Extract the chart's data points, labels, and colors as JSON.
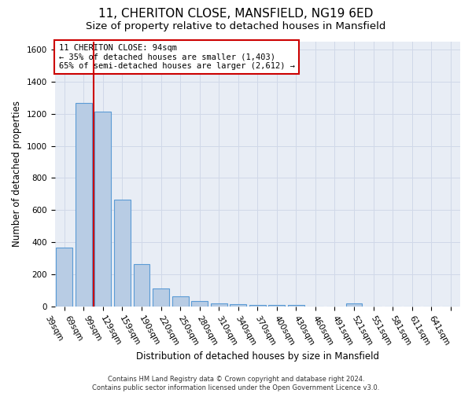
{
  "title1": "11, CHERITON CLOSE, MANSFIELD, NG19 6ED",
  "title2": "Size of property relative to detached houses in Mansfield",
  "xlabel": "Distribution of detached houses by size in Mansfield",
  "ylabel": "Number of detached properties",
  "footnote": "Contains HM Land Registry data © Crown copyright and database right 2024.\nContains public sector information licensed under the Open Government Licence v3.0.",
  "categories": [
    "39sqm",
    "69sqm",
    "99sqm",
    "129sqm",
    "159sqm",
    "190sqm",
    "220sqm",
    "250sqm",
    "280sqm",
    "310sqm",
    "340sqm",
    "370sqm",
    "400sqm",
    "430sqm",
    "460sqm",
    "491sqm",
    "521sqm",
    "551sqm",
    "581sqm",
    "611sqm",
    "641sqm"
  ],
  "values": [
    370,
    1265,
    1215,
    665,
    265,
    115,
    65,
    35,
    20,
    15,
    10,
    10,
    10,
    0,
    0,
    20,
    0,
    0,
    0,
    0,
    0
  ],
  "bar_color": "#b8cce4",
  "bar_edge_color": "#5b9bd5",
  "vline_color": "#cc0000",
  "annotation_text": "11 CHERITON CLOSE: 94sqm\n← 35% of detached houses are smaller (1,403)\n65% of semi-detached houses are larger (2,612) →",
  "annotation_box_color": "#ffffff",
  "annotation_box_edge_color": "#cc0000",
  "ylim": [
    0,
    1650
  ],
  "yticks": [
    0,
    200,
    400,
    600,
    800,
    1000,
    1200,
    1400,
    1600
  ],
  "grid_color": "#d0d8e8",
  "bg_color": "#e8edf5",
  "title1_fontsize": 11,
  "title2_fontsize": 9.5,
  "axis_label_fontsize": 8.5,
  "tick_fontsize": 7.5,
  "annot_fontsize": 7.5,
  "footnote_fontsize": 6
}
